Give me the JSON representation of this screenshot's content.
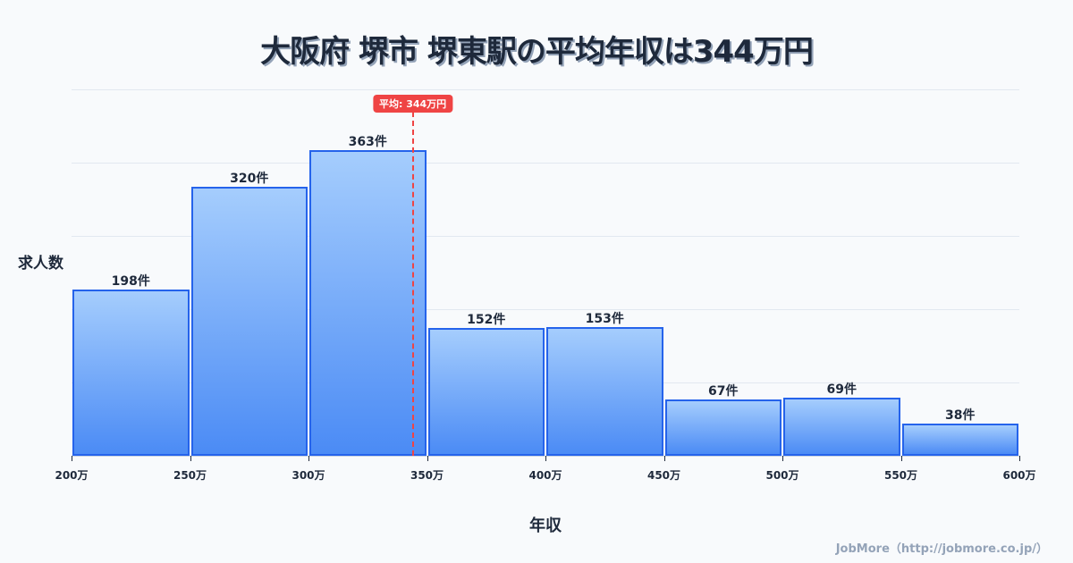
{
  "title": "大阪府 堺市 堺東駅の平均年収は344万円",
  "ylabel": "求人数",
  "xlabel": "年収",
  "credit": "JobMore（http://jobmore.co.jp/）",
  "average": {
    "label": "平均: 344万円",
    "value": 344
  },
  "colors": {
    "bar_top": "#a5cdfd",
    "bar_bottom": "#4b8bf5",
    "bar_border": "#2563eb",
    "avg": "#ef4444",
    "text": "#1e293b"
  },
  "chart_data": {
    "type": "bar",
    "title": "大阪府 堺市 堺東駅の平均年収は344万円",
    "xlabel": "年収",
    "ylabel": "求人数",
    "categories": [
      "200万-250万",
      "250万-300万",
      "300万-350万",
      "350万-400万",
      "400万-450万",
      "450万-500万",
      "500万-550万",
      "550万-600万"
    ],
    "values": [
      198,
      320,
      363,
      152,
      153,
      67,
      69,
      38
    ],
    "value_labels": [
      "198件",
      "320件",
      "363件",
      "152件",
      "153件",
      "67件",
      "69件",
      "38件"
    ],
    "x_ticks": [
      "200万",
      "250万",
      "300万",
      "350万",
      "400万",
      "450万",
      "500万",
      "550万",
      "600万"
    ],
    "xlim": [
      200,
      600
    ],
    "ylim": [
      0,
      435.6
    ],
    "grid": true,
    "annotations": [
      {
        "type": "vline",
        "x": 344,
        "label": "平均: 344万円",
        "color": "#ef4444",
        "style": "dashed"
      }
    ]
  }
}
